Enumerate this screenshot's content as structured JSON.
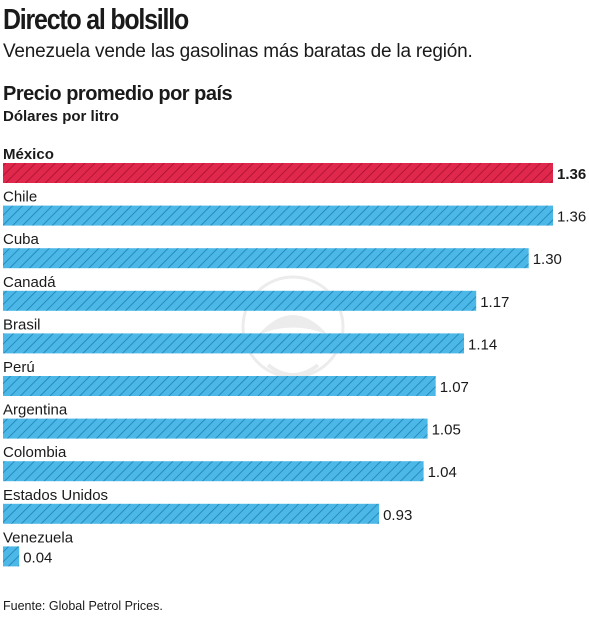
{
  "header": {
    "title": "Directo al bolsillo",
    "subtitle": "Venezuela vende las gasolinas más baratas de la región."
  },
  "source": "Fuente: Global Petrol Prices.",
  "colors": {
    "highlight": "#e0284d",
    "highlight_hatch": "#a8102e",
    "bar": "#4cb8e8",
    "bar_hatch": "#1e7fb3",
    "text": "#1a1a1a"
  },
  "chart_data": {
    "type": "bar",
    "orientation": "horizontal",
    "title": "Precio promedio por país",
    "unit_label": "Dólares por litro",
    "categories": [
      "México",
      "Chile",
      "Cuba",
      "Canadá",
      "Brasil",
      "Perú",
      "Argentina",
      "Colombia",
      "Estados Unidos",
      "Venezuela"
    ],
    "values": [
      1.36,
      1.36,
      1.3,
      1.17,
      1.14,
      1.07,
      1.05,
      1.04,
      0.93,
      0.04
    ],
    "value_labels": [
      "1.36",
      "1.36",
      "1.30",
      "1.17",
      "1.14",
      "1.07",
      "1.05",
      "1.04",
      "0.93",
      "0.04"
    ],
    "highlight": "México",
    "xlim": [
      0,
      1.36
    ],
    "grid": false,
    "legend": "none"
  }
}
